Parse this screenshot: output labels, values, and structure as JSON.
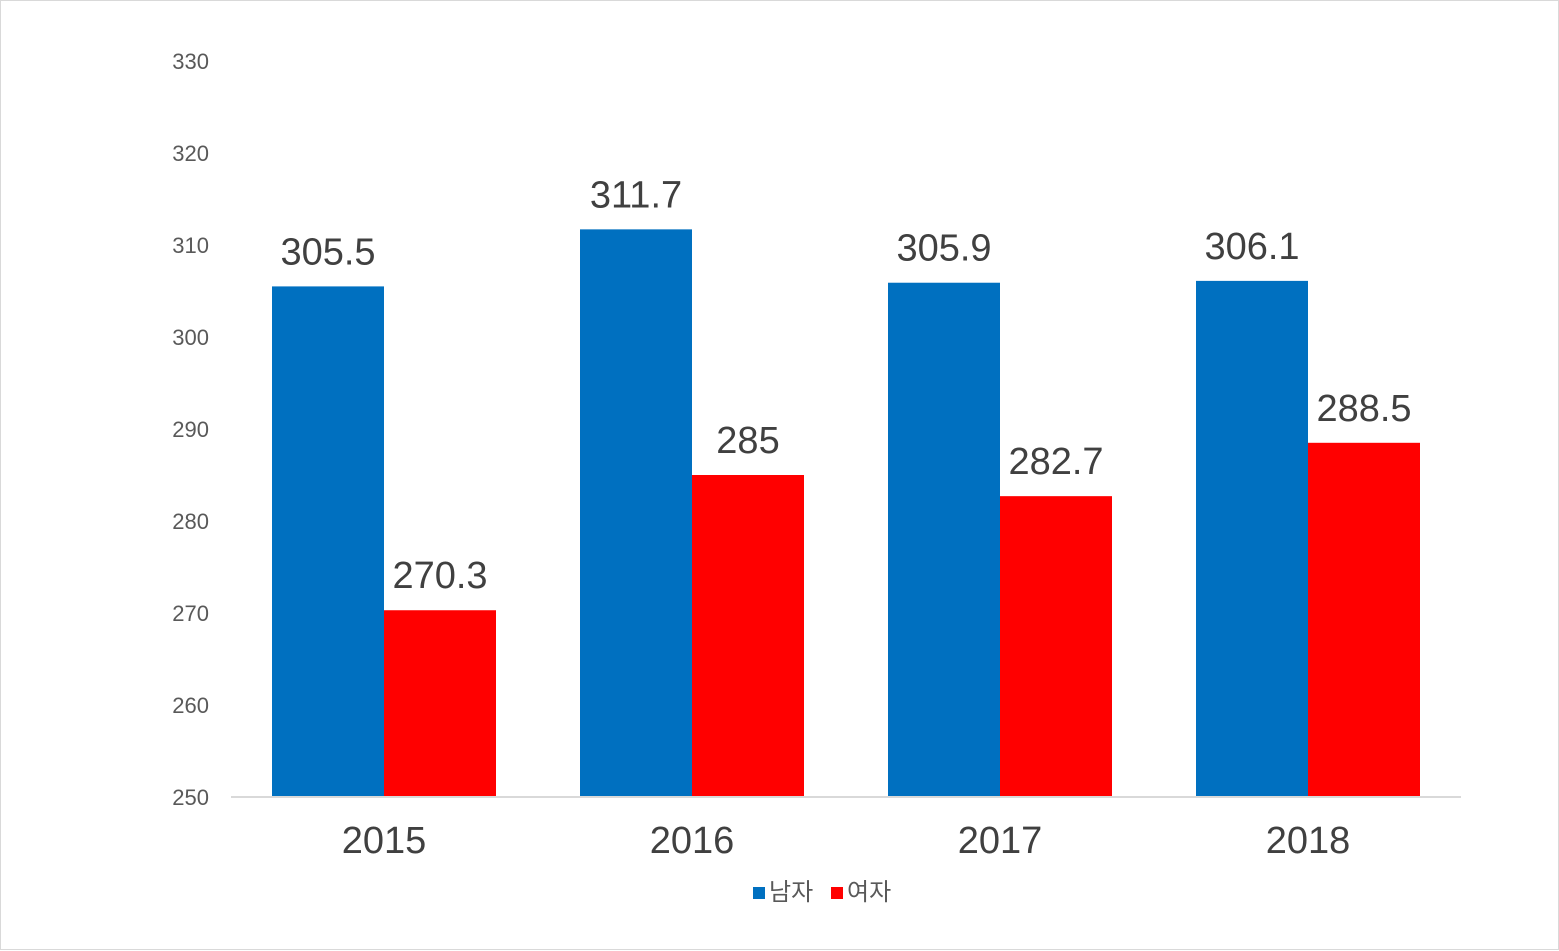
{
  "chart_data": {
    "type": "bar",
    "categories": [
      "2015",
      "2016",
      "2017",
      "2018"
    ],
    "series": [
      {
        "name": "남자",
        "values": [
          305.5,
          311.7,
          305.9,
          306.1
        ],
        "color": "#0070C0"
      },
      {
        "name": "여자",
        "values": [
          270.3,
          285,
          282.7,
          288.5
        ],
        "color": "#FF0000"
      }
    ],
    "data_labels": [
      [
        "305.5",
        "311.7",
        "305.9",
        "306.1"
      ],
      [
        "270.3",
        "285",
        "282.7",
        "288.5"
      ]
    ],
    "yticks": [
      "250",
      "260",
      "270",
      "280",
      "290",
      "300",
      "310",
      "320",
      "330"
    ],
    "ylim": [
      250,
      330
    ],
    "xlabel": "",
    "ylabel": "",
    "title": "",
    "grid": false,
    "legend_position": "bottom"
  }
}
